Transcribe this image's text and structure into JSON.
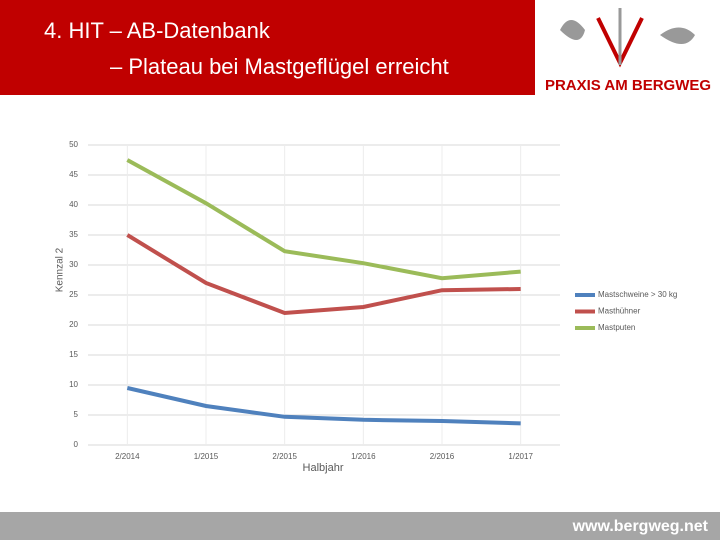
{
  "header": {
    "title": [
      "4. HIT – AB-Datenbank",
      "– Plateau bei Mastgeflügel erreicht"
    ],
    "logo_text": "PRAXIS AM BERGWEG"
  },
  "footer": {
    "url": "www.bergweg.net"
  },
  "chart_data": {
    "type": "line",
    "x_label": "Halbjahr",
    "y_label": "Kennzal 2",
    "categories": [
      "2/2014",
      "1/2015",
      "2/2015",
      "1/2016",
      "2/2016",
      "1/2017"
    ],
    "series": [
      {
        "name": "Mastschweine > 30 kg",
        "color": "#4f81bd",
        "values": [
          9.5,
          6.5,
          4.7,
          4.2,
          4.0,
          3.6
        ]
      },
      {
        "name": "Masthühner",
        "color": "#c0504d",
        "values": [
          35,
          27,
          22,
          23,
          25.8,
          26
        ]
      },
      {
        "name": "Mastputen",
        "color": "#9bbb59",
        "values": [
          47.5,
          40.3,
          32.3,
          30.3,
          27.8,
          28.9
        ]
      }
    ],
    "ylim": [
      0,
      50
    ],
    "yticks": [
      0,
      5,
      10,
      15,
      20,
      25,
      30,
      35,
      40,
      45,
      50
    ],
    "grid": true,
    "legend": "right"
  }
}
